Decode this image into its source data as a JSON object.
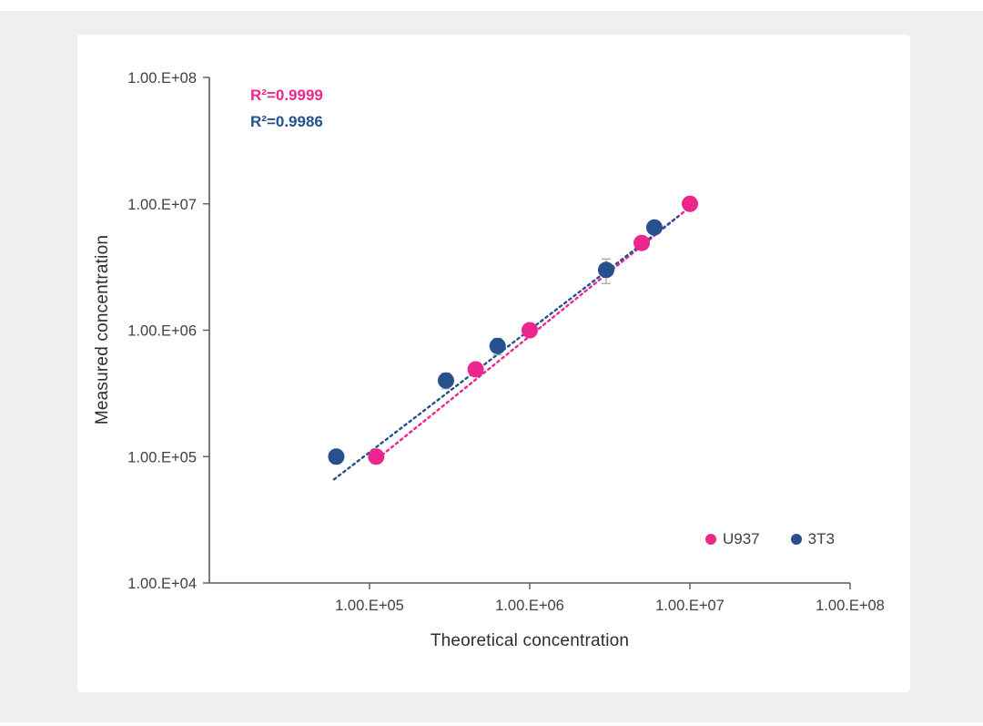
{
  "page": {
    "backdrop_color": "#edf0ef",
    "panel_color": "#ffffff"
  },
  "annotations": {
    "r2_u937": "R²=0.9999",
    "r2_3t3": "R²=0.9986"
  },
  "legend": {
    "items": [
      {
        "label": "U937",
        "color": "#ec268d"
      },
      {
        "label": "3T3",
        "color": "#27508f"
      }
    ]
  },
  "chart_data": {
    "type": "scatter",
    "x_scale": "log",
    "y_scale": "log",
    "xlabel": "Theoretical concentration",
    "ylabel": "Measured concentration",
    "xlim": [
      10000,
      100000000
    ],
    "ylim": [
      10000,
      100000000
    ],
    "grid": false,
    "legend_position": "bottom-right",
    "axis_color": "#58595b",
    "tick_text_color": "#414042",
    "error_bar_color": "#a6a8ab",
    "x_ticks": [
      {
        "value": 100000,
        "label": "1.00.E+05"
      },
      {
        "value": 1000000,
        "label": "1.00.E+06"
      },
      {
        "value": 10000000,
        "label": "1.00.E+07"
      },
      {
        "value": 100000000,
        "label": "1.00.E+08"
      }
    ],
    "y_ticks": [
      {
        "value": 10000,
        "label": "1.00.E+04"
      },
      {
        "value": 100000,
        "label": "1.00.E+05"
      },
      {
        "value": 1000000,
        "label": "1.00.E+06"
      },
      {
        "value": 10000000,
        "label": "1.00.E+07"
      },
      {
        "value": 100000000,
        "label": "1.00.E+08"
      }
    ],
    "series": [
      {
        "name": "U937",
        "color": "#ec268d",
        "r_squared": 0.9999,
        "points": [
          {
            "x": 110000,
            "y": 100000,
            "err": 0.12
          },
          {
            "x": 460000,
            "y": 490000,
            "err": 0.1
          },
          {
            "x": 1000000,
            "y": 1000000,
            "err": 0.08
          },
          {
            "x": 5000000,
            "y": 4900000,
            "err": 0.0
          },
          {
            "x": 10000000,
            "y": 10000000,
            "err": 0.0
          }
        ],
        "trendline": {
          "style": "dotted",
          "x1": 105000,
          "y1": 90000,
          "x2": 10800000,
          "y2": 10200000
        }
      },
      {
        "name": "3T3",
        "color": "#27508f",
        "r_squared": 0.9986,
        "points": [
          {
            "x": 62000,
            "y": 100000,
            "err": 0.12
          },
          {
            "x": 300000,
            "y": 400000,
            "err": 0.14
          },
          {
            "x": 630000,
            "y": 750000,
            "err": 0.15
          },
          {
            "x": 3000000,
            "y": 3000000,
            "err": 0.22
          },
          {
            "x": 6000000,
            "y": 6500000,
            "err": 0.0
          }
        ],
        "trendline": {
          "style": "dotted",
          "x1": 60000,
          "y1": 66000,
          "x2": 8400000,
          "y2": 7900000
        }
      }
    ]
  }
}
